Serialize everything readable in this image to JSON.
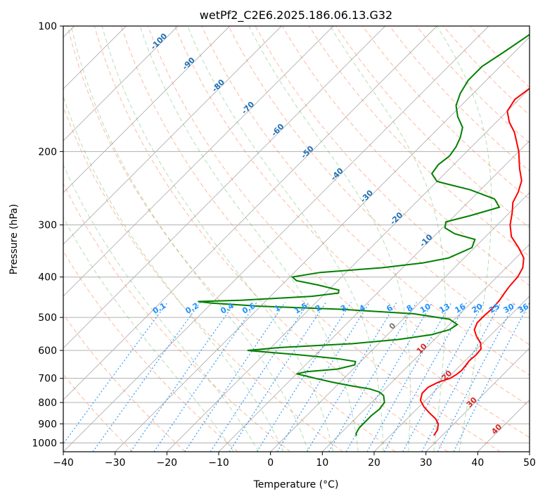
{
  "chart_data": {
    "type": "line",
    "title": "wetPf2_C2E6.2025.186.06.13.G32",
    "xlabel": "Temperature (°C)",
    "ylabel": "Pressure (hPa)",
    "xlim": [
      -40,
      50
    ],
    "ylim": [
      1050,
      100
    ],
    "y_scale": "log",
    "skew_t": true,
    "x_ticks": [
      -40,
      -30,
      -20,
      -10,
      0,
      10,
      20,
      30,
      40,
      50
    ],
    "y_ticks": [
      100,
      200,
      300,
      400,
      500,
      600,
      700,
      800,
      900,
      1000
    ],
    "grid": true,
    "colors": {
      "temperature": "#ff0000",
      "dewpoint": "#008000",
      "dry_adiabat": "#ff7f50",
      "moist_adiabat": "#2ca02c",
      "mixing_ratio": "#1e90ff",
      "isotherm": "#999999"
    },
    "series": [
      {
        "key": "temperature",
        "color": "#ff0000",
        "points": [
          [
            28.4,
            960
          ],
          [
            28.0,
            930
          ],
          [
            27.0,
            900
          ],
          [
            25.5,
            875
          ],
          [
            23.0,
            845
          ],
          [
            21.0,
            820
          ],
          [
            19.0,
            790
          ],
          [
            18.0,
            760
          ],
          [
            18.0,
            735
          ],
          [
            19.0,
            715
          ],
          [
            20.5,
            700
          ],
          [
            21.0,
            685
          ],
          [
            21.2,
            670
          ],
          [
            21.0,
            650
          ],
          [
            20.8,
            635
          ],
          [
            21.0,
            615
          ],
          [
            20.8,
            595
          ],
          [
            19.5,
            575
          ],
          [
            17.5,
            555
          ],
          [
            15.8,
            535
          ],
          [
            15.0,
            515
          ],
          [
            15.0,
            495
          ],
          [
            15.2,
            475
          ],
          [
            15.0,
            455
          ],
          [
            14.5,
            435
          ],
          [
            14.2,
            420
          ],
          [
            14.0,
            400
          ],
          [
            13.2,
            380
          ],
          [
            11.5,
            360
          ],
          [
            8.5,
            340
          ],
          [
            5.0,
            320
          ],
          [
            2.5,
            300
          ],
          [
            0.5,
            280
          ],
          [
            -1.3,
            265
          ],
          [
            -2.3,
            250
          ],
          [
            -3.8,
            235
          ],
          [
            -6.5,
            220
          ],
          [
            -10.0,
            200
          ],
          [
            -14.5,
            180
          ],
          [
            -17.5,
            170
          ],
          [
            -20.0,
            160
          ],
          [
            -20.8,
            150
          ],
          [
            -20.0,
            140
          ],
          [
            -19.5,
            130
          ],
          [
            -20.5,
            120
          ],
          [
            -22.5,
            110
          ],
          [
            -26.5,
            100
          ]
        ]
      },
      {
        "key": "dewpoint",
        "color": "#008000",
        "points": [
          [
            13.5,
            960
          ],
          [
            13.0,
            950
          ],
          [
            12.5,
            920
          ],
          [
            12.5,
            890
          ],
          [
            12.5,
            860
          ],
          [
            12.8,
            830
          ],
          [
            12.5,
            800
          ],
          [
            11.0,
            770
          ],
          [
            9.5,
            755
          ],
          [
            7.0,
            742
          ],
          [
            3.0,
            730
          ],
          [
            -1.5,
            715
          ],
          [
            -5.5,
            700
          ],
          [
            -8.0,
            690
          ],
          [
            -10.0,
            683
          ],
          [
            -8.5,
            675
          ],
          [
            -3.0,
            665
          ],
          [
            -0.5,
            650
          ],
          [
            -1.0,
            638
          ],
          [
            -5.0,
            628
          ],
          [
            -13.0,
            615
          ],
          [
            -24.0,
            600
          ],
          [
            -18.0,
            590
          ],
          [
            -5.0,
            578
          ],
          [
            3.0,
            565
          ],
          [
            8.5,
            550
          ],
          [
            11.0,
            535
          ],
          [
            11.5,
            520
          ],
          [
            9.0,
            505
          ],
          [
            1.0,
            490
          ],
          [
            -14.0,
            478
          ],
          [
            -30.0,
            470
          ],
          [
            -40.0,
            462
          ],
          [
            -43.0,
            458
          ],
          [
            -35.0,
            455
          ],
          [
            -22.0,
            445
          ],
          [
            -17.5,
            437
          ],
          [
            -18.0,
            430
          ],
          [
            -23.0,
            418
          ],
          [
            -28.0,
            408
          ],
          [
            -29.5,
            400
          ],
          [
            -25.0,
            390
          ],
          [
            -14.0,
            380
          ],
          [
            -7.0,
            370
          ],
          [
            -3.0,
            360
          ],
          [
            -0.5,
            340
          ],
          [
            -1.5,
            325
          ],
          [
            -6.5,
            315
          ],
          [
            -9.5,
            305
          ],
          [
            -10.5,
            295
          ],
          [
            -7.0,
            285
          ],
          [
            -3.0,
            272
          ],
          [
            -5.5,
            260
          ],
          [
            -12.0,
            247
          ],
          [
            -20.0,
            236
          ],
          [
            -22.5,
            226
          ],
          [
            -23.0,
            215
          ],
          [
            -22.5,
            205
          ],
          [
            -23.0,
            195
          ],
          [
            -24.0,
            185
          ],
          [
            -25.5,
            175
          ],
          [
            -28.5,
            165
          ],
          [
            -31.0,
            155
          ],
          [
            -32.5,
            145
          ],
          [
            -33.5,
            135
          ],
          [
            -33.5,
            125
          ],
          [
            -32.0,
            115
          ],
          [
            -30.5,
            105
          ],
          [
            -30.0,
            100
          ]
        ]
      }
    ],
    "dry_adiabats_C": [
      -30,
      -20,
      -10,
      0,
      10,
      20,
      30,
      40,
      50,
      60,
      70,
      80,
      90,
      100,
      110,
      120,
      130,
      140,
      150,
      160,
      170
    ],
    "moist_adiabats_C": [
      -10,
      -5,
      0,
      5,
      10,
      15,
      20,
      25,
      30,
      35
    ],
    "mixing_ratio_labels": [
      "0.1",
      "0.2",
      "0.4",
      "0.6",
      "1",
      "1.5",
      "2",
      "3",
      "4",
      "6",
      "8",
      "10",
      "13",
      "16",
      "20",
      "25",
      "30",
      "36"
    ],
    "isotherm_labels_blue": [
      "-100",
      "-90",
      "-80",
      "-70",
      "-60",
      "-50",
      "-40",
      "-30",
      "-20",
      "-10"
    ],
    "isotherm_labels_gray": [
      "0"
    ],
    "isotherm_labels_red": [
      "10",
      "20",
      "30",
      "40"
    ]
  }
}
